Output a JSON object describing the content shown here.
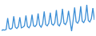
{
  "chart_data": {
    "type": "line",
    "color": "#3d8fd6",
    "tick_labels": false,
    "grid": false,
    "x": [
      0,
      1,
      2,
      3,
      4,
      5,
      6,
      7,
      8,
      9,
      10,
      11,
      12,
      13,
      14,
      15,
      16,
      17,
      18,
      19,
      20,
      21,
      22,
      23,
      24,
      25,
      26,
      27,
      28,
      29,
      30,
      31,
      32,
      33,
      34,
      35,
      36,
      37,
      38,
      39,
      40,
      41,
      42,
      43,
      44,
      45,
      46,
      47,
      48,
      49,
      50,
      51,
      52,
      53,
      54,
      55,
      56,
      57,
      58,
      59,
      60,
      61
    ],
    "values": [
      12,
      14,
      13,
      15,
      50,
      18,
      16,
      20,
      55,
      22,
      18,
      24,
      52,
      20,
      22,
      26,
      58,
      24,
      20,
      28,
      60,
      26,
      24,
      30,
      64,
      28,
      22,
      32,
      70,
      30,
      26,
      34,
      66,
      32,
      28,
      36,
      74,
      30,
      26,
      38,
      78,
      34,
      30,
      40,
      72,
      36,
      10,
      42,
      82,
      38,
      34,
      44,
      86,
      40,
      36,
      46,
      90,
      42,
      38,
      48,
      80,
      44
    ],
    "xlim": [
      0,
      61
    ],
    "ylim": [
      0,
      100
    ]
  }
}
